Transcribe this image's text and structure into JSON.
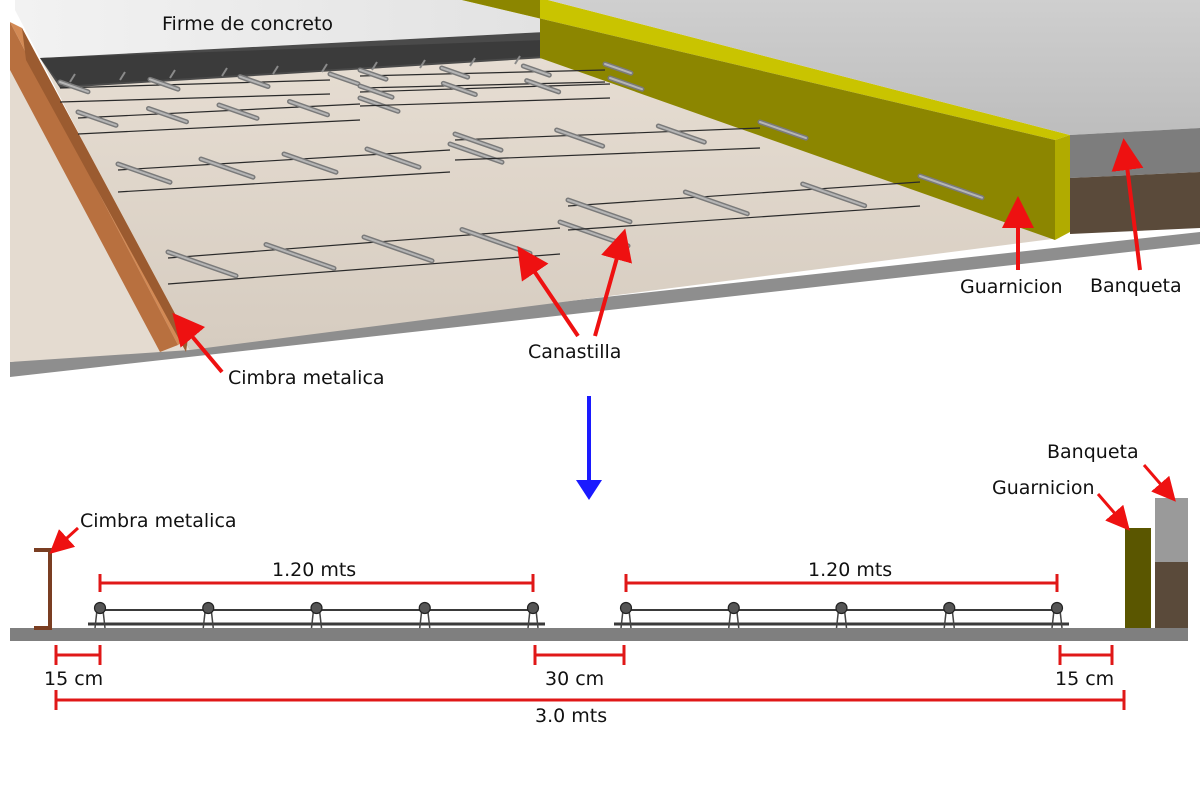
{
  "perspective": {
    "title": "Firme de concreto",
    "labels": {
      "cimbra": "Cimbra metalica",
      "canastilla": "Canastilla",
      "guarnicion": "Guarnicion",
      "banqueta": "Banqueta"
    }
  },
  "section": {
    "labels": {
      "cimbra": "Cimbra metalica",
      "guarnicion": "Guarnicion",
      "banqueta": "Banqueta"
    },
    "dimensions": {
      "basket_left": "1.20 mts",
      "basket_right": "1.20 mts",
      "gap_left": "15 cm",
      "gap_center": "30 cm",
      "gap_right": "15 cm",
      "total": "3.0 mts"
    }
  },
  "colors": {
    "annotation_arrow": "#ee1111",
    "flow_arrow": "#1a1aff",
    "dimension_line": "#e01818",
    "slab": "#ddd3c7",
    "cimbra": "#c87a45",
    "guarnicion": "#8f8a00",
    "banqueta": "#b5b5b5",
    "soil": "#5a4a3a"
  },
  "icons": {
    "flow_arrow": "arrow-down-icon",
    "annotation_arrow": "arrow-pointer-icon"
  }
}
